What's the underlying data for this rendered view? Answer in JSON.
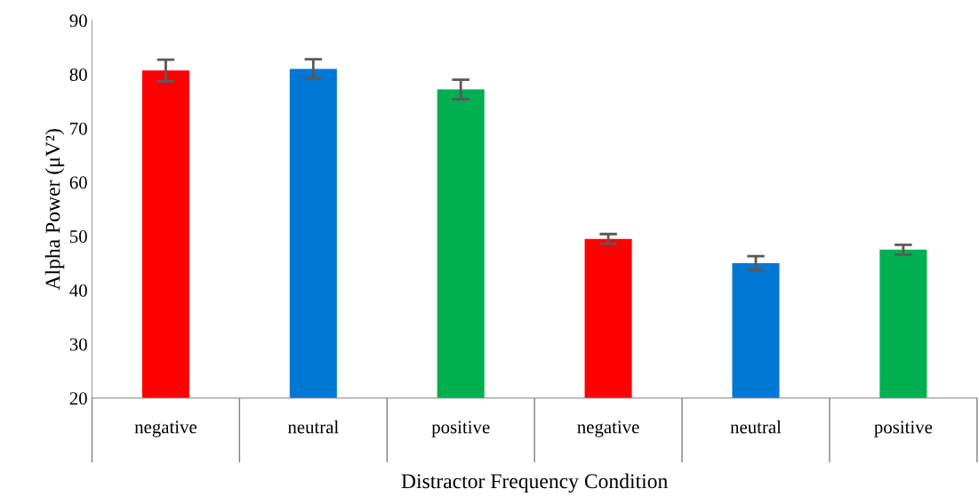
{
  "chart_data": {
    "type": "bar",
    "xlabel": "Distractor Frequency Condition",
    "ylabel": "Alpha Power (μV²)",
    "categories": [
      "negative",
      "neutral",
      "positive",
      "negative",
      "neutral",
      "positive"
    ],
    "values": [
      80.7,
      81.0,
      77.2,
      49.5,
      45.0,
      47.5
    ],
    "colors": [
      "#ff0000",
      "#0077d2",
      "#00b050",
      "#ff0000",
      "#0077d2",
      "#00b050"
    ],
    "errors": [
      2.0,
      1.8,
      1.8,
      0.9,
      1.3,
      0.9
    ],
    "ylim": [
      20,
      90
    ],
    "yticks": [
      20,
      30,
      40,
      50,
      60,
      70,
      80,
      90
    ],
    "grid": false
  }
}
